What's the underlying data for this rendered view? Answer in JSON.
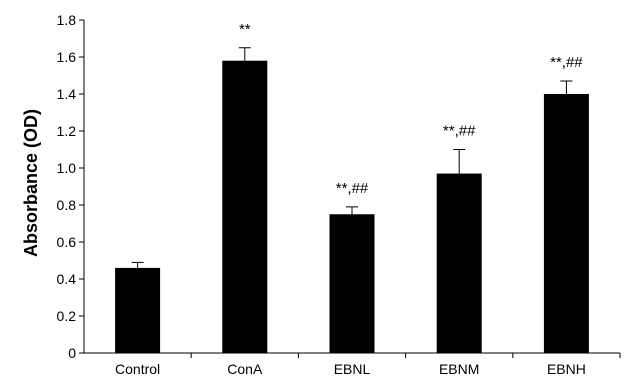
{
  "chart_data": {
    "type": "bar",
    "title": "",
    "xlabel": "",
    "ylabel": "Absorbance (OD)",
    "ylim": [
      0,
      1.8
    ],
    "yticks": [
      0,
      0.2,
      0.4,
      0.6,
      0.8,
      1.0,
      1.2,
      1.4,
      1.6,
      1.8
    ],
    "ytick_labels": [
      "0",
      "0.2",
      "0.4",
      "0.6",
      "0.8",
      "1.0",
      "1.2",
      "1.4",
      "1.6",
      "1.8"
    ],
    "grid": false,
    "legend": "none",
    "bar_color": "#000000",
    "categories": [
      "Control",
      "ConA",
      "EBNL",
      "EBNM",
      "EBNH"
    ],
    "values": [
      0.46,
      1.58,
      0.75,
      0.97,
      1.4
    ],
    "error": [
      0.03,
      0.07,
      0.04,
      0.13,
      0.07
    ],
    "annotations": [
      "",
      "**",
      "**,##",
      "**,##",
      "**,##"
    ]
  }
}
